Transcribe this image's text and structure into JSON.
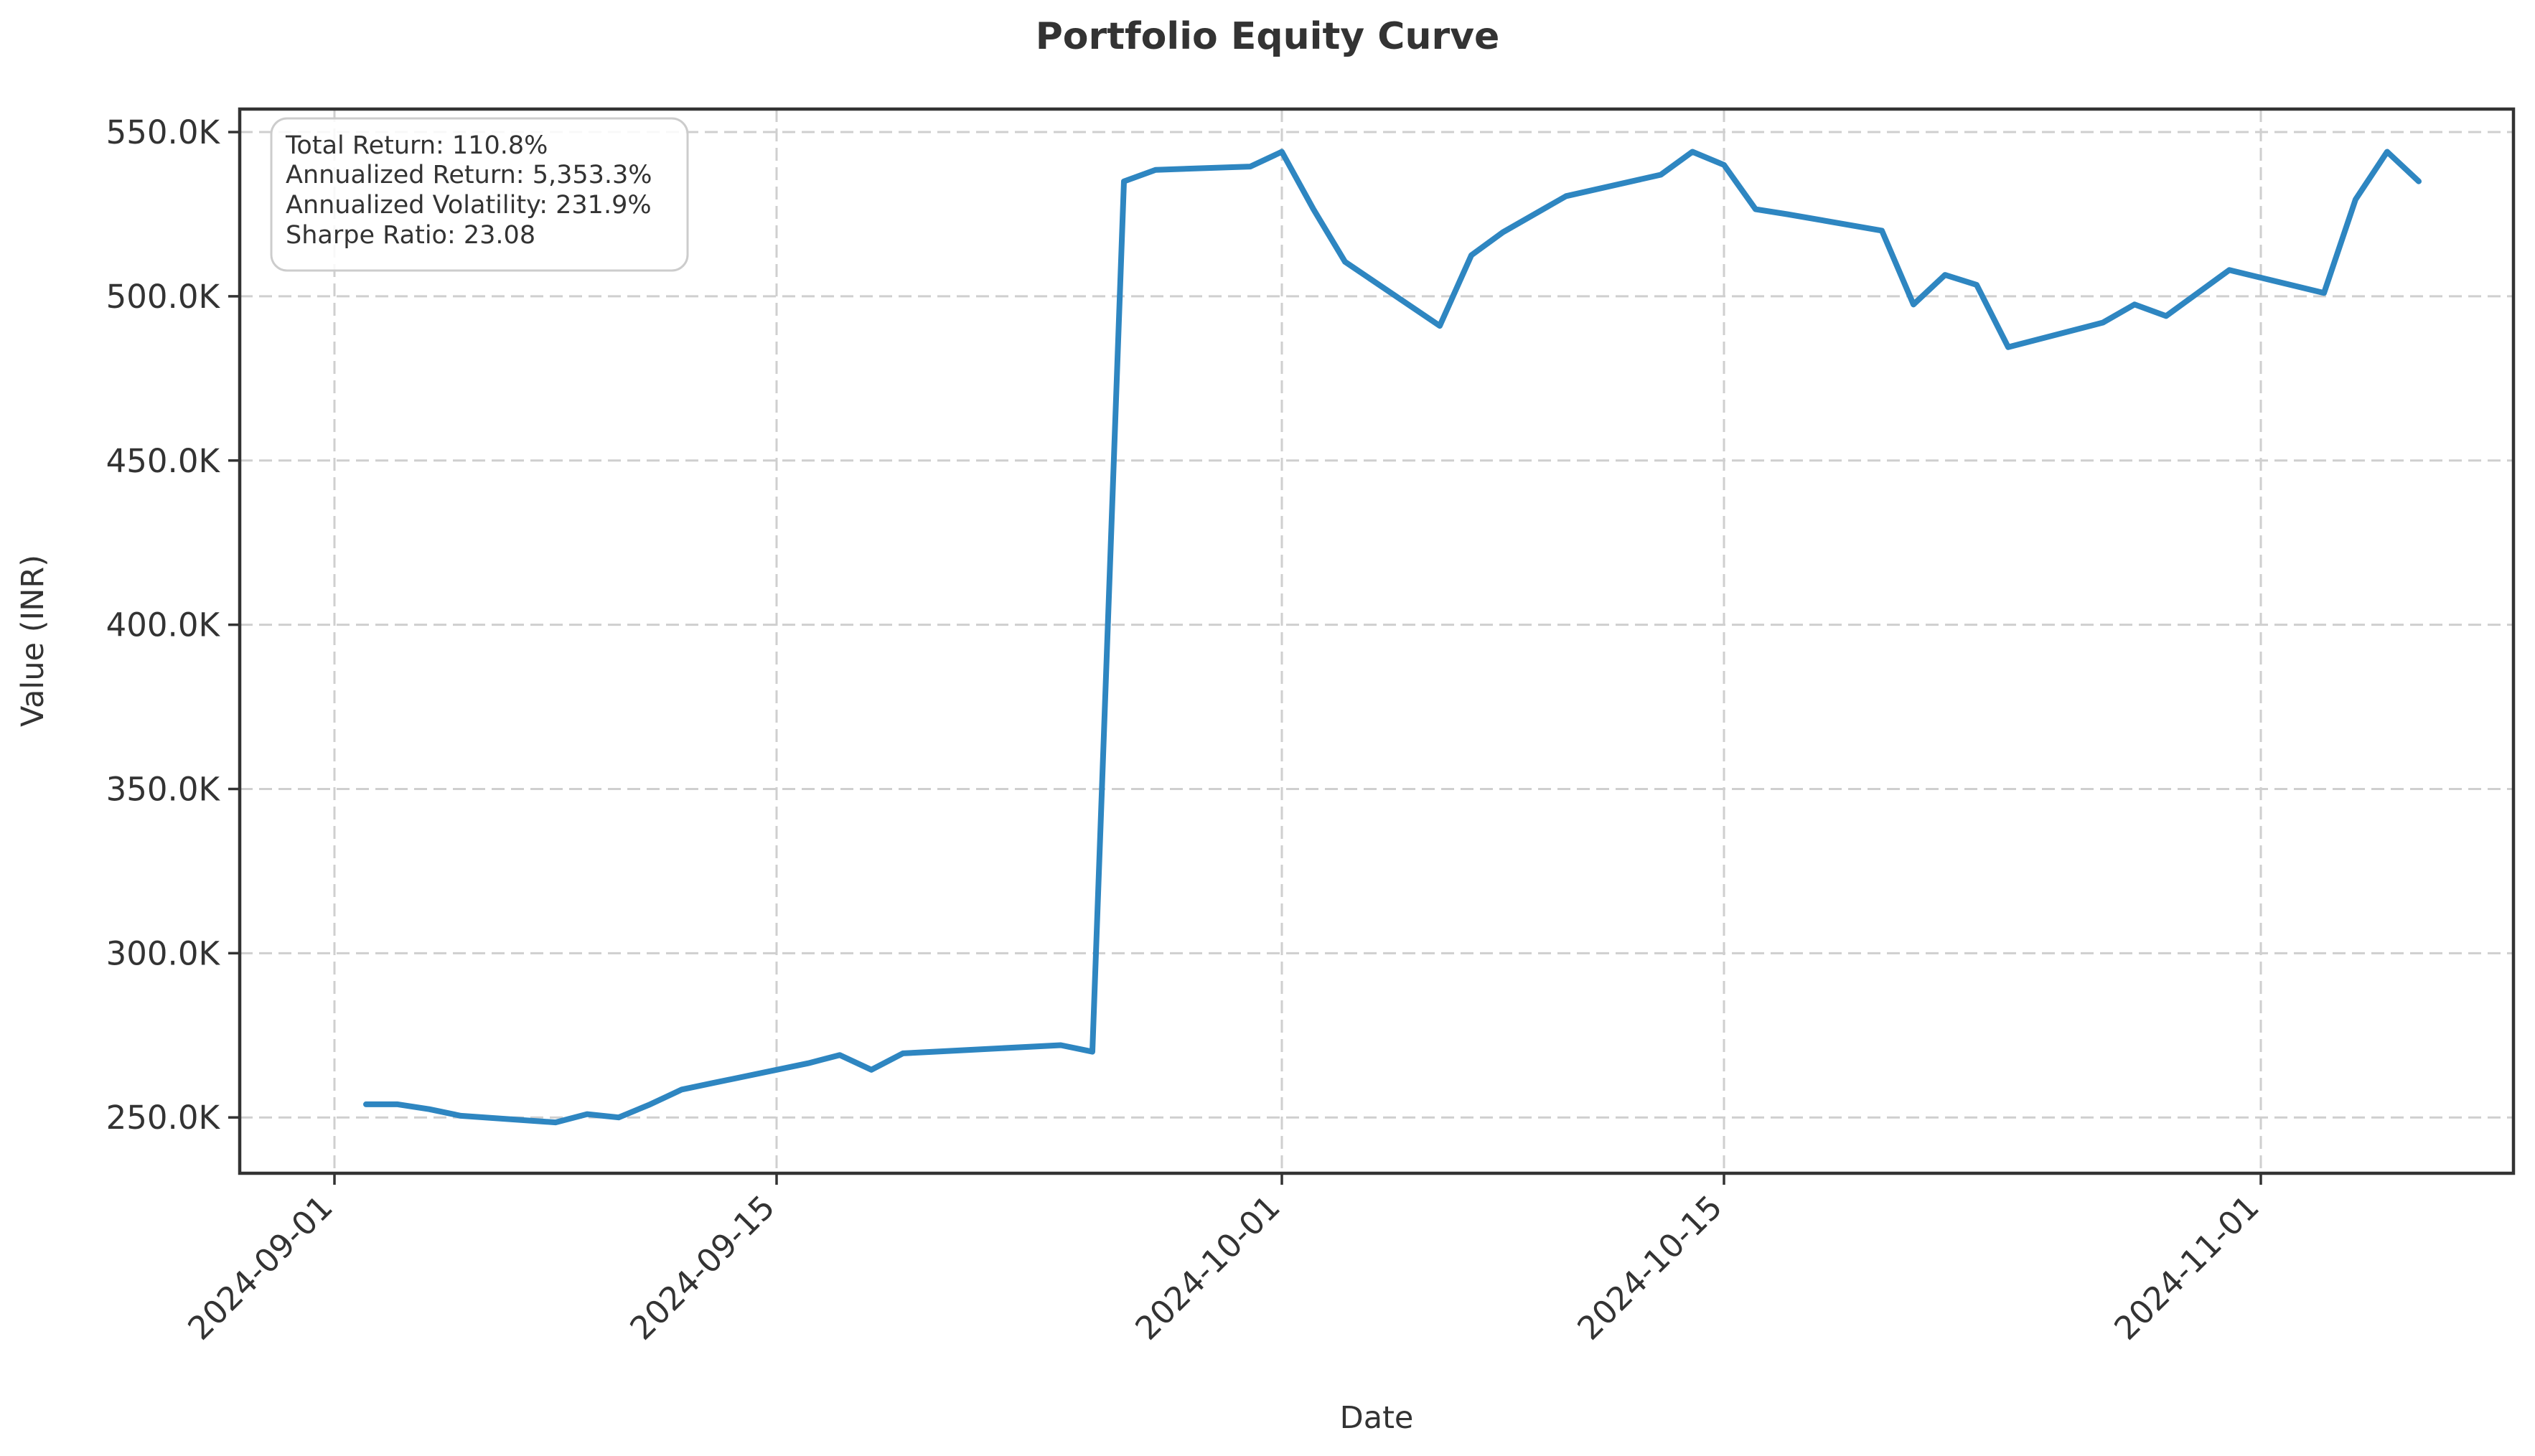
{
  "chart_data": {
    "type": "line",
    "title": "Portfolio Equity Curve",
    "xlabel": "Date",
    "ylabel": "Value (INR)",
    "xlim": [
      "2024-08-29",
      "2024-11-09"
    ],
    "ylim": [
      233000,
      557000
    ],
    "grid": true,
    "x_ticks": [
      "2024-09-01",
      "2024-09-15",
      "2024-10-01",
      "2024-10-15",
      "2024-11-01"
    ],
    "y_ticks": [
      250000,
      300000,
      350000,
      400000,
      450000,
      500000,
      550000
    ],
    "y_tick_labels": [
      "250.0K",
      "300.0K",
      "350.0K",
      "400.0K",
      "450.0K",
      "500.0K",
      "550.0K"
    ],
    "stats": [
      "Total Return: 110.8%",
      "Annualized Return: 5,353.3%",
      "Annualized Volatility: 231.9%",
      "Sharpe Ratio: 23.08"
    ],
    "series": [
      {
        "color": "#2e86c1",
        "x": [
          "2024-09-02",
          "2024-09-03",
          "2024-09-04",
          "2024-09-05",
          "2024-09-08",
          "2024-09-09",
          "2024-09-10",
          "2024-09-11",
          "2024-09-12",
          "2024-09-13",
          "2024-09-16",
          "2024-09-17",
          "2024-09-18",
          "2024-09-19",
          "2024-09-20",
          "2024-09-24",
          "2024-09-25",
          "2024-09-26",
          "2024-09-27",
          "2024-09-30",
          "2024-10-01",
          "2024-10-02",
          "2024-10-03",
          "2024-10-06",
          "2024-10-07",
          "2024-10-08",
          "2024-10-10",
          "2024-10-13",
          "2024-10-14",
          "2024-10-15",
          "2024-10-16",
          "2024-10-17",
          "2024-10-20",
          "2024-10-21",
          "2024-10-22",
          "2024-10-23",
          "2024-10-24",
          "2024-10-27",
          "2024-10-28",
          "2024-10-29",
          "2024-10-31",
          "2024-11-03",
          "2024-11-04",
          "2024-11-05",
          "2024-11-06"
        ],
        "values": [
          254000,
          254000,
          252500,
          250500,
          248500,
          251000,
          250000,
          254000,
          258500,
          260500,
          266500,
          269000,
          264500,
          269500,
          270000,
          272000,
          270000,
          535000,
          538500,
          539500,
          544000,
          526500,
          510500,
          491000,
          512500,
          519500,
          530500,
          537000,
          544000,
          540000,
          526500,
          525000,
          520000,
          497500,
          506500,
          503500,
          484500,
          492000,
          497500,
          494000,
          508000,
          501000,
          529500,
          544000,
          535000
        ]
      }
    ]
  }
}
